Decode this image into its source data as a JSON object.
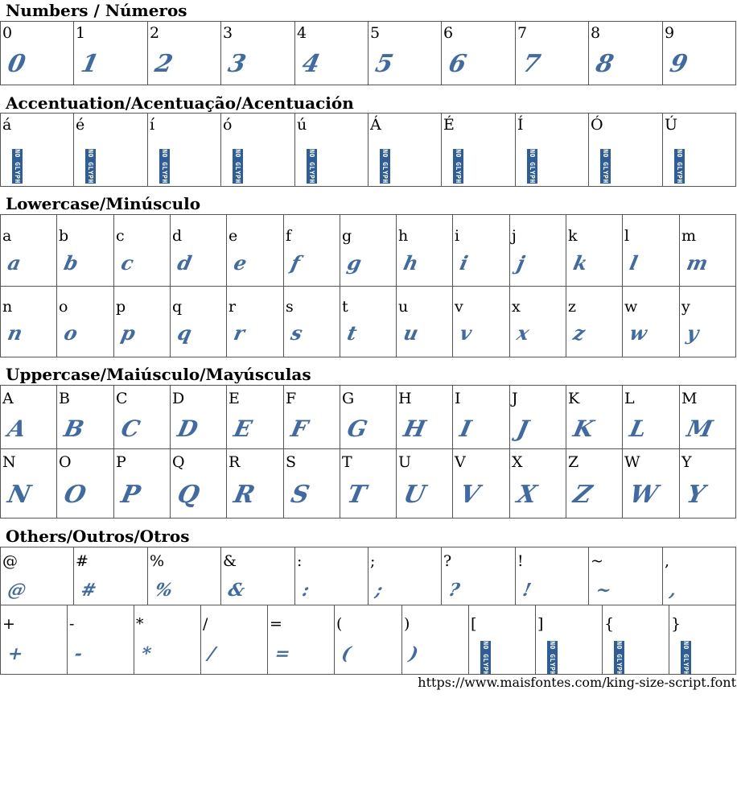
{
  "sections": {
    "numbers": {
      "title": "Numbers / Números",
      "rows": [
        [
          "0",
          "1",
          "2",
          "3",
          "4",
          "5",
          "6",
          "7",
          "8",
          "9"
        ]
      ]
    },
    "accents": {
      "title": "Accentuation/Acentuação/Acentuación",
      "rows": [
        [
          "á",
          "é",
          "í",
          "ó",
          "ú",
          "Á",
          "É",
          "Í",
          "Ó",
          "Ú"
        ]
      ]
    },
    "lowercase": {
      "title": "Lowercase/Minúsculo",
      "rows": [
        [
          "a",
          "b",
          "c",
          "d",
          "e",
          "f",
          "g",
          "h",
          "i",
          "j",
          "k",
          "l",
          "m"
        ],
        [
          "n",
          "o",
          "p",
          "q",
          "r",
          "s",
          "t",
          "u",
          "v",
          "x",
          "z",
          "w",
          "y"
        ]
      ]
    },
    "uppercase": {
      "title": "Uppercase/Maiúsculo/Mayúsculas",
      "rows": [
        [
          "A",
          "B",
          "C",
          "D",
          "E",
          "F",
          "G",
          "H",
          "I",
          "J",
          "K",
          "L",
          "M"
        ],
        [
          "N",
          "O",
          "P",
          "Q",
          "R",
          "S",
          "T",
          "U",
          "V",
          "X",
          "Z",
          "W",
          "Y"
        ]
      ]
    },
    "others": {
      "title": "Others/Outros/Otros",
      "rows": [
        [
          "@",
          "#",
          "%",
          "&",
          ":",
          ";",
          "?",
          "!",
          "~",
          ","
        ],
        [
          "+",
          "-",
          "*",
          "/",
          "=",
          "(",
          ")",
          "[",
          "]",
          "{",
          "}"
        ]
      ]
    }
  },
  "missing_glyph_text": "NO GLYPH",
  "missing_chars": [
    "á",
    "é",
    "í",
    "ó",
    "ú",
    "Á",
    "É",
    "Í",
    "Ó",
    "Ú",
    "[",
    "]",
    "{",
    "}"
  ],
  "footer_url": "https://www.maisfontes.com/king-size-script.font",
  "colors": {
    "glyph": "#3f6aa3",
    "missing_glyph": "#2f5d98",
    "border": "#555555"
  }
}
